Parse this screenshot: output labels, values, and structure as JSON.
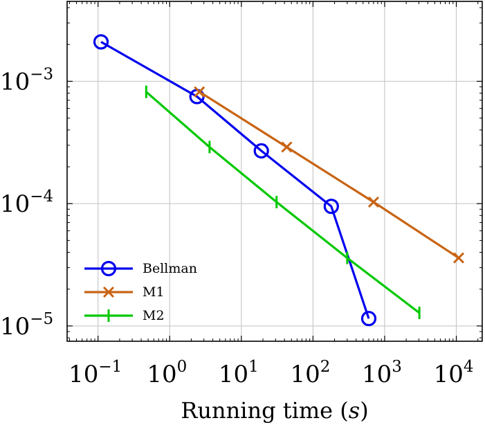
{
  "chart_data": {
    "type": "line",
    "title": "",
    "xlabel": "Running time (s)",
    "ylabel": "",
    "xscale": "log",
    "yscale": "log",
    "xlim": [
      0.037,
      23000
    ],
    "ylim": [
      7.5e-06,
      0.0045
    ],
    "x_ticks": [
      {
        "value": 0.1,
        "base": "10",
        "exp": "−1"
      },
      {
        "value": 1,
        "base": "10",
        "exp": "0"
      },
      {
        "value": 10,
        "base": "10",
        "exp": "1"
      },
      {
        "value": 100,
        "base": "10",
        "exp": "2"
      },
      {
        "value": 1000,
        "base": "10",
        "exp": "3"
      },
      {
        "value": 10000,
        "base": "10",
        "exp": "4"
      }
    ],
    "y_ticks": [
      {
        "value": 1e-05,
        "base": "10",
        "exp": "−5"
      },
      {
        "value": 0.0001,
        "base": "10",
        "exp": "−4"
      },
      {
        "value": 0.001,
        "base": "10",
        "exp": "−3"
      }
    ],
    "grid": true,
    "legend_position": "bottom-left",
    "series": [
      {
        "name": "Bellman",
        "color": "#0000ee",
        "marker": "circle",
        "x": [
          0.11,
          2.4,
          19,
          180,
          600
        ],
        "y": [
          0.0021,
          0.00075,
          0.00027,
          9.5e-05,
          1.15e-05
        ]
      },
      {
        "name": "M1",
        "color": "#c86414",
        "marker": "x",
        "x": [
          2.6,
          43,
          700,
          10800
        ],
        "y": [
          0.00082,
          0.00029,
          0.000103,
          3.6e-05
        ]
      },
      {
        "name": "M2",
        "color": "#00c800",
        "marker": "vbar",
        "x": [
          0.47,
          3.6,
          31,
          300,
          3050
        ],
        "y": [
          0.00082,
          0.00029,
          0.000103,
          3.6e-05,
          1.28e-05
        ]
      }
    ]
  }
}
